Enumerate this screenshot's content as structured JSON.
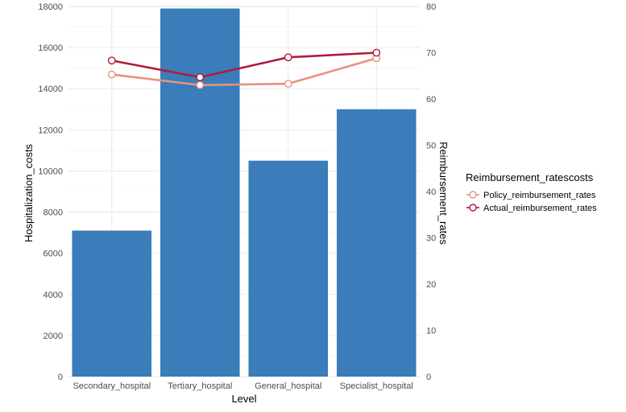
{
  "chart_data": {
    "type": "bar",
    "title": "",
    "categories": [
      "Secondary_hospital",
      "Tertiary_hospital",
      "General_hospital",
      "Specialist_hospital"
    ],
    "xlabel": "Level",
    "ylabel": "Hospitalization_costs",
    "y2label": "Reimbursement_rates",
    "ylim": [
      0,
      18000
    ],
    "yticks": [
      "0",
      "2000",
      "4000",
      "6000",
      "8000",
      "10000",
      "12000",
      "14000",
      "16000",
      "18000"
    ],
    "y2lim": [
      0,
      80
    ],
    "y2ticks": [
      "0",
      "10",
      "20",
      "30",
      "40",
      "50",
      "60",
      "70",
      "80"
    ],
    "grid": true,
    "bars": {
      "values": [
        7100,
        17900,
        10500,
        13000
      ],
      "color": "#3a7dba"
    },
    "series": [
      {
        "name": "Policy_reimbursement_rates",
        "values": [
          65.3,
          63.0,
          63.3,
          68.8
        ],
        "color": "#e8927c",
        "axis": "right"
      },
      {
        "name": "Actual_reimbursement_rates",
        "values": [
          68.3,
          64.7,
          69.0,
          70.0
        ],
        "color": "#b2183b",
        "axis": "right"
      }
    ],
    "legend": {
      "title": "Reimbursement_ratescosts",
      "placement": "right"
    }
  }
}
